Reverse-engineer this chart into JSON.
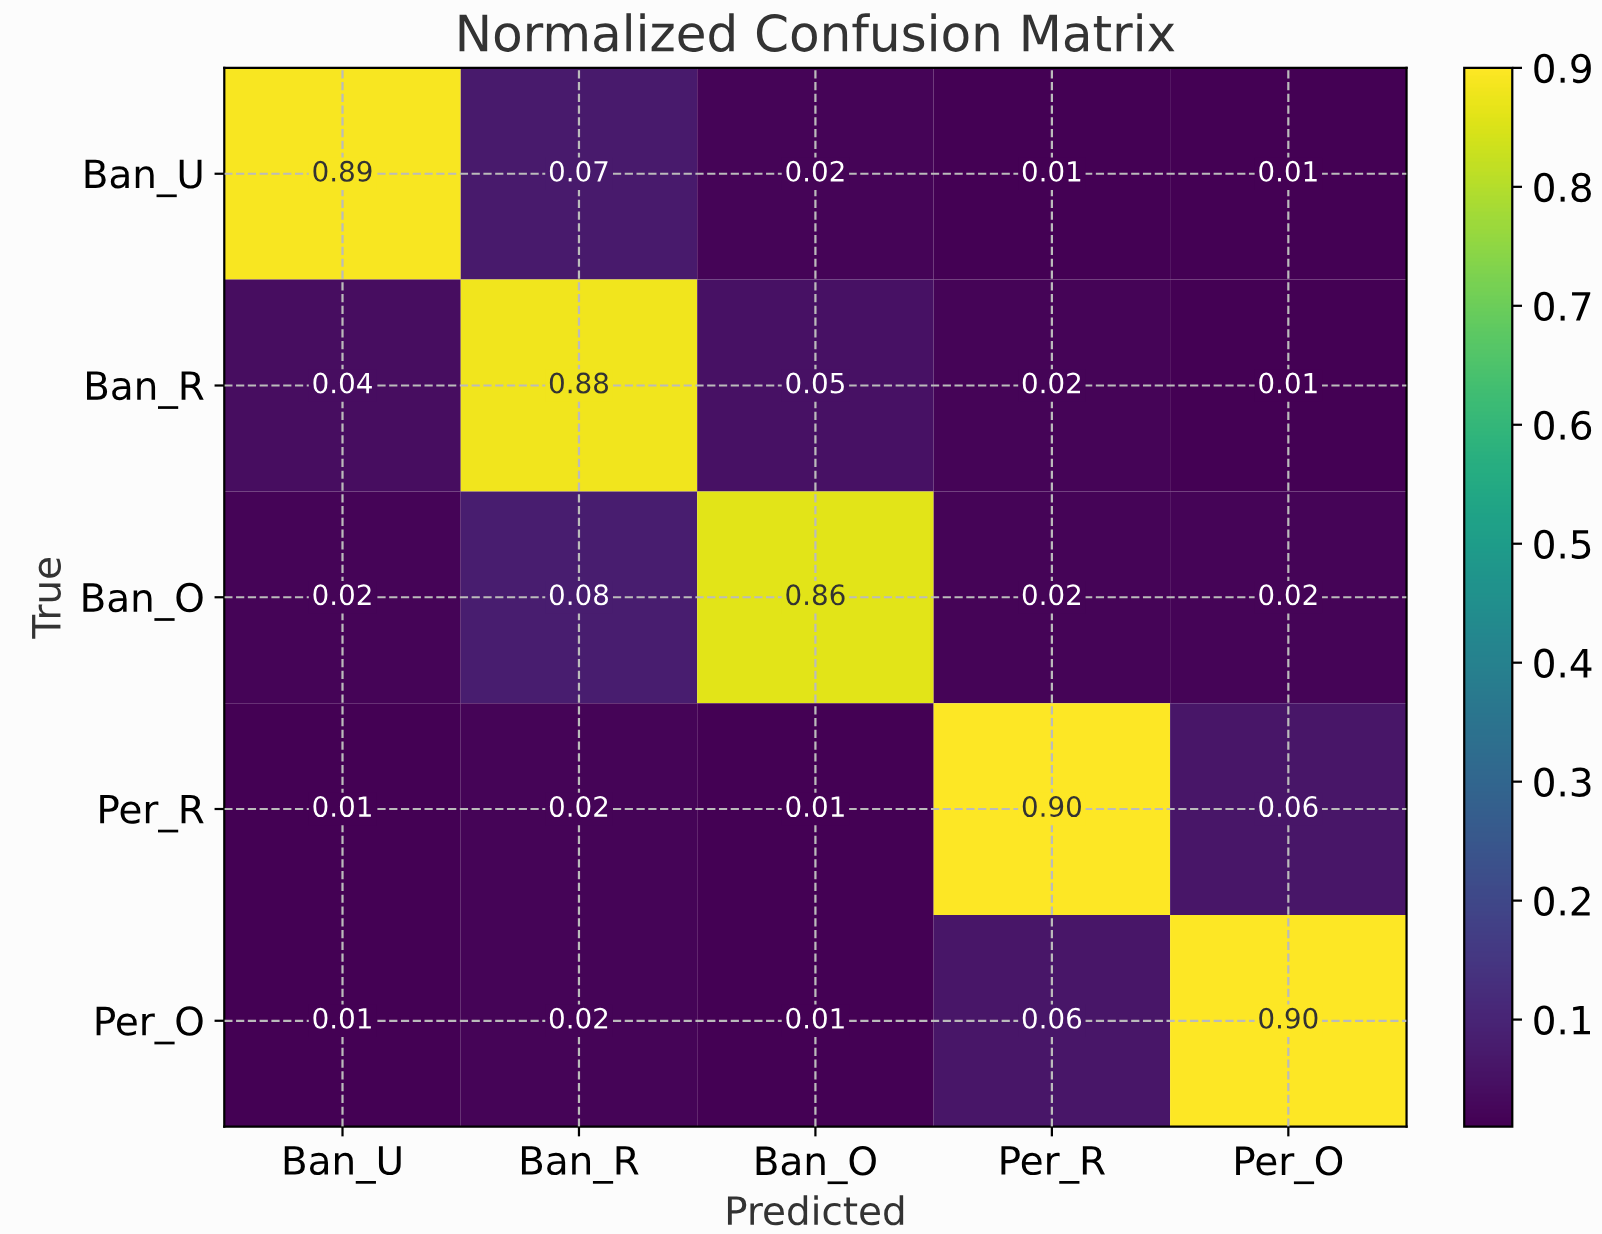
{
  "chart_data": {
    "type": "heatmap",
    "title": "Normalized Confusion Matrix",
    "xlabel": "Predicted",
    "ylabel": "True",
    "categories": [
      "Ban_U",
      "Ban_R",
      "Ban_O",
      "Per_R",
      "Per_O"
    ],
    "y_categories": [
      "Ban_U",
      "Ban_R",
      "Ban_O",
      "Per_R",
      "Per_O"
    ],
    "cells": [
      [
        0.89,
        0.07,
        0.02,
        0.01,
        0.01
      ],
      [
        0.04,
        0.88,
        0.05,
        0.02,
        0.01
      ],
      [
        0.02,
        0.08,
        0.86,
        0.02,
        0.02
      ],
      [
        0.01,
        0.02,
        0.01,
        0.9,
        0.06
      ],
      [
        0.01,
        0.02,
        0.01,
        0.06,
        0.9
      ]
    ],
    "cell_labels": [
      [
        "0.89",
        "0.07",
        "0.02",
        "0.01",
        "0.01"
      ],
      [
        "0.04",
        "0.88",
        "0.05",
        "0.02",
        "0.01"
      ],
      [
        "0.02",
        "0.08",
        "0.86",
        "0.02",
        "0.02"
      ],
      [
        "0.01",
        "0.02",
        "0.01",
        "0.90",
        "0.06"
      ],
      [
        "0.01",
        "0.02",
        "0.01",
        "0.06",
        "0.90"
      ]
    ],
    "clim": [
      0.01,
      0.9
    ],
    "cticks": [
      0.1,
      0.2,
      0.3,
      0.4,
      0.5,
      0.6,
      0.7,
      0.8,
      0.9
    ],
    "grid": true
  }
}
